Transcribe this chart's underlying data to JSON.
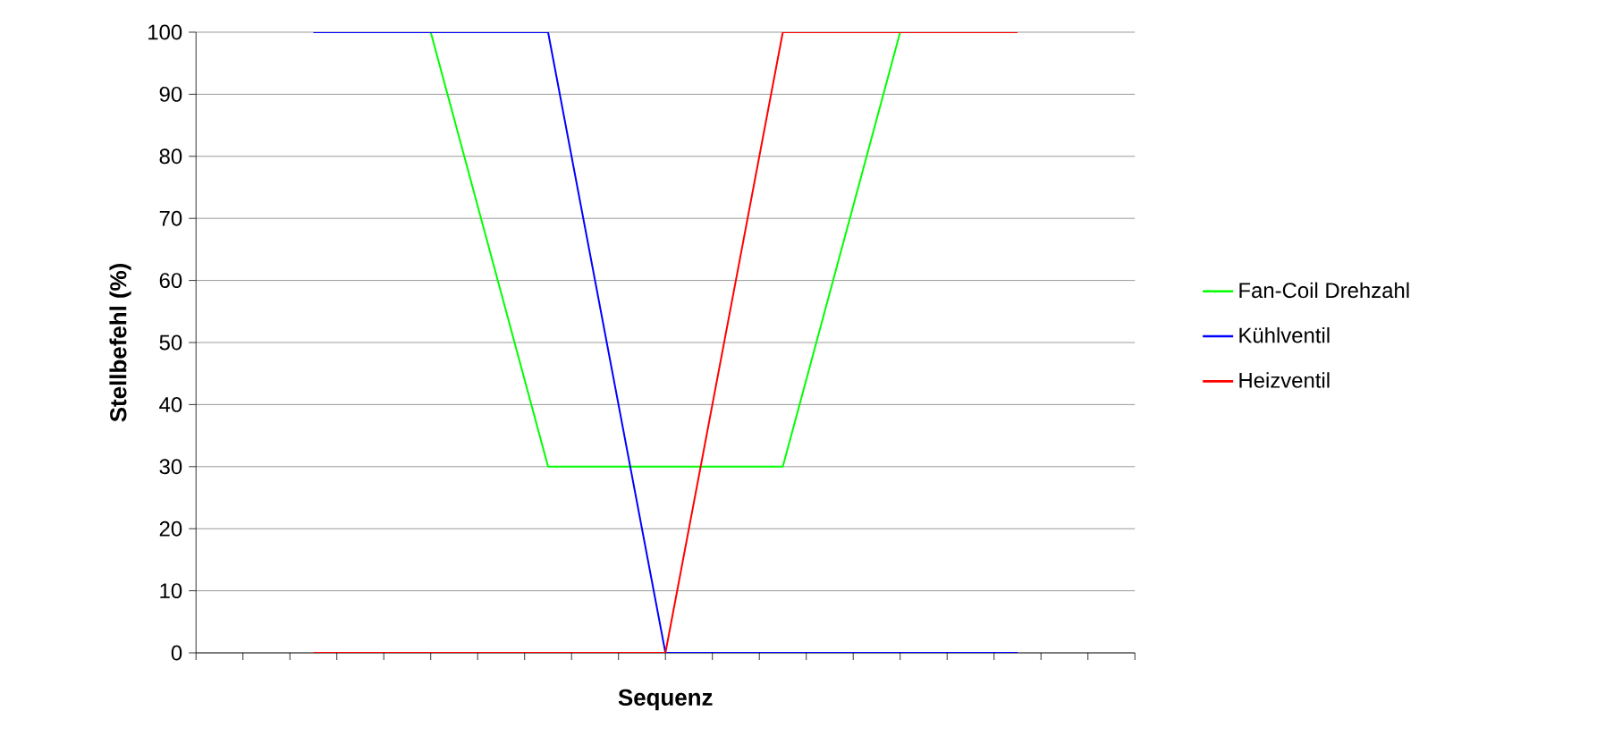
{
  "chart_data": {
    "type": "line",
    "xlabel": "Sequenz",
    "ylabel": "Stellbefehl (%)",
    "categories": [
      null,
      null,
      null,
      null,
      null,
      null,
      null
    ],
    "ylim": [
      0,
      100
    ],
    "yticks": [
      0,
      10,
      20,
      30,
      40,
      50,
      60,
      70,
      80,
      90,
      100
    ],
    "tick_labels": "y",
    "grid": "y",
    "legend": "right",
    "marker": "none",
    "line_style": "solid",
    "series": [
      {
        "name": "Fan-Coil Drehzahl",
        "color": "#00ff00",
        "values": [
          null,
          100,
          30,
          30,
          30,
          100,
          null
        ]
      },
      {
        "name": "Kühlventil",
        "color": "#0000ff",
        "values": [
          100,
          100,
          100,
          0,
          0,
          0,
          0
        ]
      },
      {
        "name": "Heizventil",
        "color": "#ff0000",
        "values": [
          0,
          0,
          0,
          0,
          100,
          100,
          100
        ]
      }
    ]
  }
}
